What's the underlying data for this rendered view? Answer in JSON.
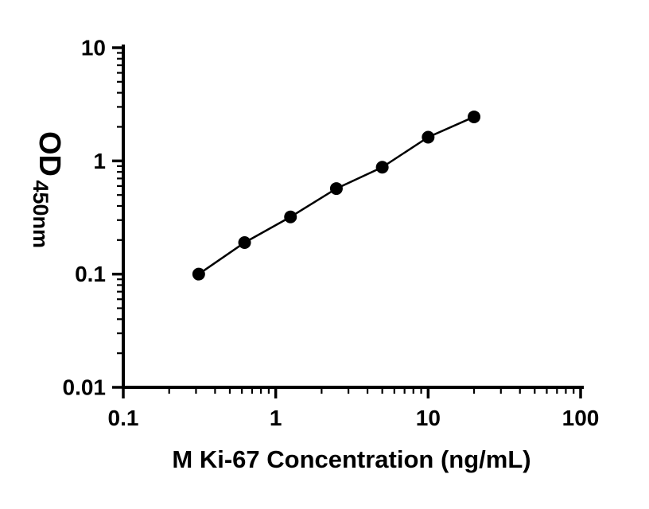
{
  "figure": {
    "background": "#ffffff"
  },
  "chart_data": {
    "type": "scatter",
    "title": "",
    "xlabel": "M Ki-67 Concentration (ng/mL)",
    "ylabel_main": "OD",
    "ylabel_subscript": "450nm",
    "xscale": "log",
    "yscale": "log",
    "xlim": [
      0.1,
      100
    ],
    "ylim": [
      0.01,
      10
    ],
    "grid": false,
    "legend": false,
    "axis_color": "#000000",
    "x_ticks": [
      {
        "label": "0.1",
        "value": 0.1
      },
      {
        "label": "1",
        "value": 1
      },
      {
        "label": "10",
        "value": 10
      },
      {
        "label": "100",
        "value": 100
      }
    ],
    "y_ticks": [
      {
        "label": "0.01",
        "value": 0.01
      },
      {
        "label": "0.1",
        "value": 0.1
      },
      {
        "label": "1",
        "value": 1
      },
      {
        "label": "10",
        "value": 10
      }
    ],
    "series": [
      {
        "marker": "circle",
        "line": true,
        "color": "#000000",
        "points": [
          {
            "x": 0.3125,
            "y": 0.1
          },
          {
            "x": 0.625,
            "y": 0.19
          },
          {
            "x": 1.25,
            "y": 0.32
          },
          {
            "x": 2.5,
            "y": 0.57
          },
          {
            "x": 5,
            "y": 0.88
          },
          {
            "x": 10,
            "y": 1.62
          },
          {
            "x": 20,
            "y": 2.45
          }
        ]
      }
    ]
  }
}
